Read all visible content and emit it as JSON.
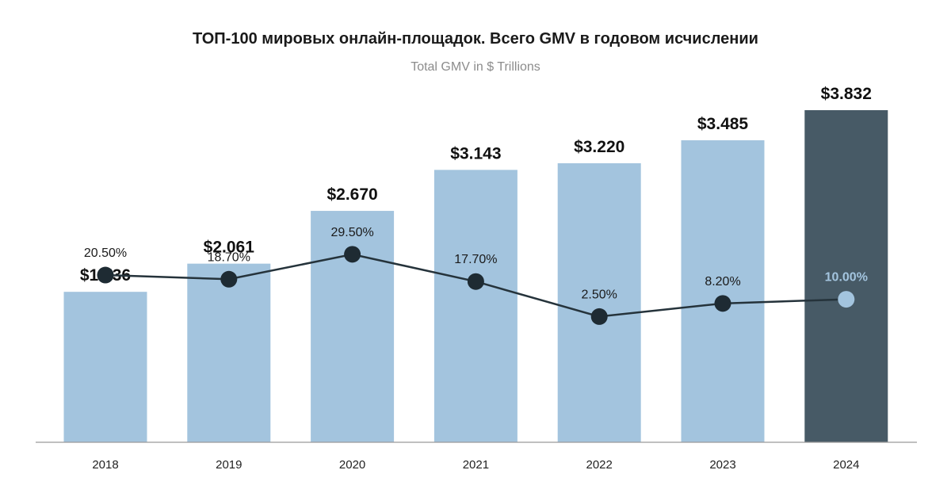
{
  "title": "ТОП-100 мировых онлайн-площадок. Всего GMV в годовом исчислении",
  "subtitle": "Total GMV in $ Trillions",
  "colors": {
    "bar": "#a3c4de",
    "bar_highlight": "#475a66",
    "line": "#25333b",
    "marker": "#1e2b33",
    "marker_highlight": "#a3c4de",
    "label_highlight": "#a3c4de",
    "axis": "#9a9a9a"
  },
  "chart_data": {
    "type": "bar",
    "categories": [
      "2018",
      "2019",
      "2020",
      "2021",
      "2022",
      "2023",
      "2024"
    ],
    "values": [
      1.736,
      2.061,
      2.67,
      3.143,
      3.22,
      3.485,
      3.832
    ],
    "value_labels": [
      "$1.736",
      "$2.061",
      "$2.670",
      "$3.143",
      "$3.220",
      "$3.485",
      "$3.832"
    ],
    "highlight_index": 6,
    "ylim": [
      0,
      3.832
    ],
    "overlay_line": {
      "type": "line",
      "values": [
        20.5,
        18.7,
        29.5,
        17.7,
        2.5,
        8.2,
        10.0
      ],
      "labels": [
        "20.50%",
        "18.70%",
        "29.50%",
        "17.70%",
        "2.50%",
        "8.20%",
        "10.00%"
      ],
      "ylim": [
        -52,
        92
      ]
    },
    "grid": false,
    "legend": "none"
  }
}
